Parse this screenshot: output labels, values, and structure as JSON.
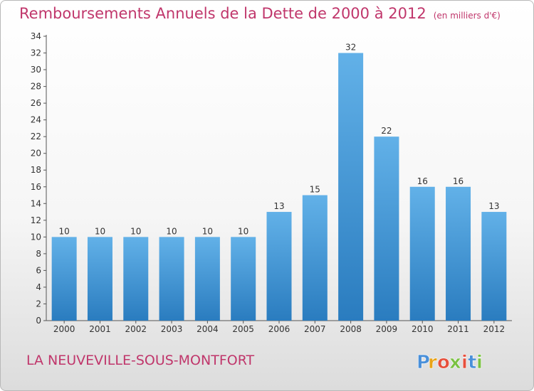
{
  "title": {
    "main": "Remboursements Annuels de la Dette de 2000 à 2012",
    "unit": "(en milliers d'€)"
  },
  "commune": "LA NEUVEVILLE-SOUS-MONTFORT",
  "logo": {
    "text": "Proxiti",
    "letters": [
      "P",
      "r",
      "o",
      "x",
      "i",
      "t",
      "i"
    ],
    "colors": [
      "#4a90d9",
      "#e8a317",
      "#e64f3c",
      "#7ac142",
      "#e64f3c",
      "#4a90d9",
      "#7ac142"
    ]
  },
  "colors": {
    "title": "#c0366b",
    "bar_light": "#62b1e8",
    "bar_dark": "#2a7cbf"
  },
  "chart_data": {
    "type": "bar",
    "title": "Remboursements Annuels de la Dette de 2000 à 2012",
    "xlabel": "",
    "ylabel": "",
    "categories": [
      "2000",
      "2001",
      "2002",
      "2003",
      "2004",
      "2005",
      "2006",
      "2007",
      "2008",
      "2009",
      "2010",
      "2011",
      "2012"
    ],
    "values": [
      10,
      10,
      10,
      10,
      10,
      10,
      13,
      15,
      32,
      22,
      16,
      16,
      13
    ],
    "ylim": [
      0,
      34
    ],
    "yticks": [
      0,
      2,
      4,
      6,
      8,
      10,
      12,
      14,
      16,
      18,
      20,
      22,
      24,
      26,
      28,
      30,
      32,
      34
    ],
    "grid": false
  }
}
